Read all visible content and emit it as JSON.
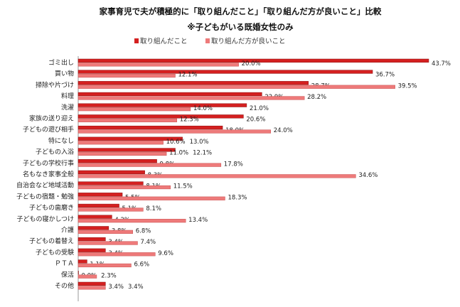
{
  "chart_data": {
    "type": "bar",
    "orientation": "horizontal",
    "title": "家事育児で夫が積極的に「取り組んだこと」「取り組んだ方が良いこと」比較",
    "subtitle": "※子どもがいる既婚女性のみ",
    "legend_placement": "top",
    "grid": false,
    "xlim": [
      0,
      45
    ],
    "categories": [
      "ゴミ出し",
      "買い物",
      "掃除や片づけ",
      "料理",
      "洗濯",
      "家族の送り迎え",
      "子どもの遊び相手",
      "特になし",
      "子どもの入浴",
      "子どもの学校行事",
      "名もなき家事全般",
      "自治会など地域活動",
      "子どもの宿題・勉強",
      "子どもの歯磨き",
      "子どもの寝かしつけ",
      "介護",
      "子どもの着替え",
      "子どもの受験",
      "ＰＴＡ",
      "保活",
      "その他"
    ],
    "series": [
      {
        "name": "取り組んだこと",
        "color": "#d42020",
        "values": [
          43.7,
          36.7,
          28.7,
          22.9,
          21.0,
          20.6,
          18.0,
          13.0,
          12.1,
          9.8,
          8.3,
          8.1,
          5.5,
          5.1,
          4.2,
          3.8,
          3.4,
          3.4,
          1.1,
          0.0,
          3.4
        ]
      },
      {
        "name": "取り組んだ方が良いこと",
        "color": "#ee7a7a",
        "values": [
          20.0,
          12.1,
          39.5,
          28.2,
          14.0,
          12.3,
          24.0,
          10.6,
          11.0,
          17.8,
          34.6,
          11.5,
          18.3,
          8.1,
          13.4,
          6.8,
          7.4,
          9.6,
          6.6,
          2.3,
          3.4
        ]
      }
    ]
  }
}
